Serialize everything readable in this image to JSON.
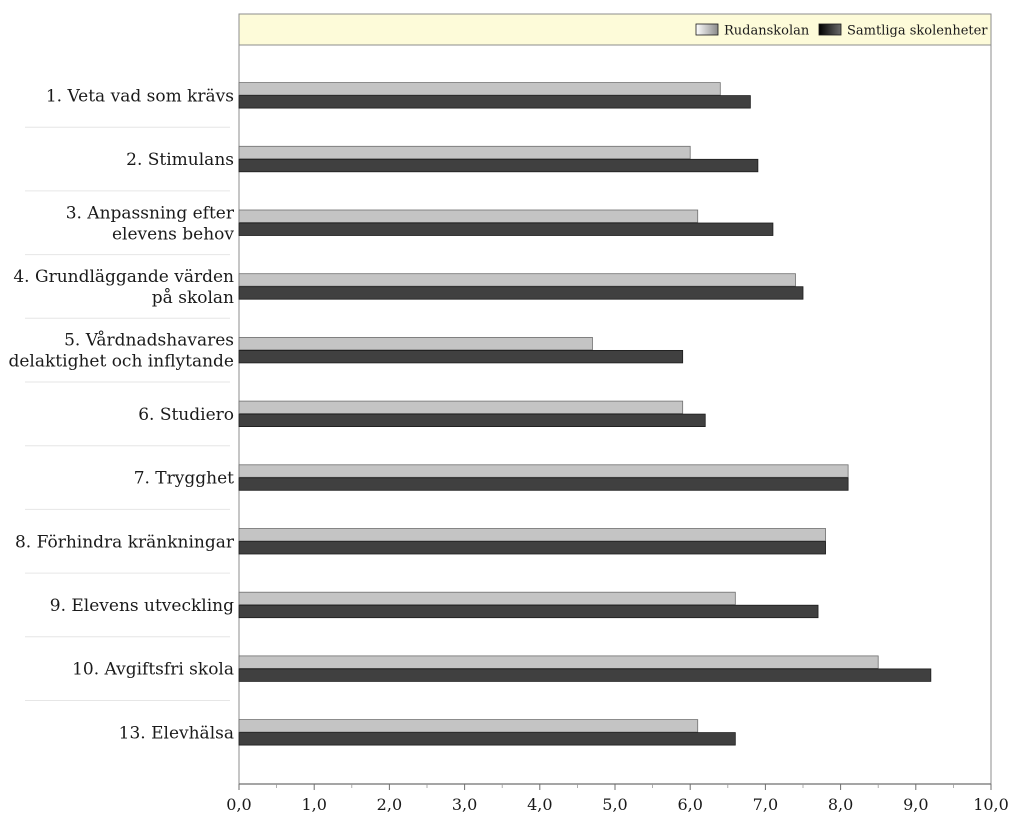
{
  "chart_data": {
    "type": "bar",
    "orientation": "horizontal",
    "categories": [
      "1. Veta vad som krävs",
      "2. Stimulans",
      "3. Anpassning efter elevens behov",
      "4. Grundläggande värden på skolan",
      "5. Vårdnadshavares delaktighet och inflytande",
      "6. Studiero",
      "7. Trygghet",
      "8. Förhindra kränkningar",
      "9. Elevens utveckling",
      "10. Avgiftsfri skola",
      "13. Elevhälsa"
    ],
    "category_lines": [
      [
        "1. Veta vad som krävs"
      ],
      [
        "2. Stimulans"
      ],
      [
        "3. Anpassning efter",
        "elevens behov"
      ],
      [
        "4. Grundläggande värden",
        "på skolan"
      ],
      [
        "5. Vårdnadshavares",
        "delaktighet och inflytande"
      ],
      [
        "6. Studiero"
      ],
      [
        "7. Trygghet"
      ],
      [
        "8. Förhindra kränkningar"
      ],
      [
        "9. Elevens utveckling"
      ],
      [
        "10. Avgiftsfri skola"
      ],
      [
        "13. Elevhälsa"
      ]
    ],
    "series": [
      {
        "name": "Rudanskolan",
        "color": "#c4c4c4",
        "values": [
          6.4,
          6.0,
          6.1,
          7.4,
          4.7,
          5.9,
          8.1,
          7.8,
          6.6,
          8.5,
          6.1
        ]
      },
      {
        "name": "Samtliga skolenheter",
        "color": "#404040",
        "values": [
          6.8,
          6.9,
          7.1,
          7.5,
          5.9,
          6.2,
          8.1,
          7.8,
          7.7,
          9.2,
          6.6
        ]
      }
    ],
    "xlim": [
      0,
      10
    ],
    "xticks": [
      0,
      1,
      2,
      3,
      4,
      5,
      6,
      7,
      8,
      9,
      10
    ],
    "tick_labels": [
      "0,0",
      "1,0",
      "2,0",
      "3,0",
      "4,0",
      "5,0",
      "6,0",
      "7,0",
      "8,0",
      "9,0",
      "10,0"
    ],
    "legend_position": "top-right",
    "legend_background": "#fdfbd9",
    "grid": false,
    "title": "",
    "xlabel": "",
    "ylabel": ""
  }
}
